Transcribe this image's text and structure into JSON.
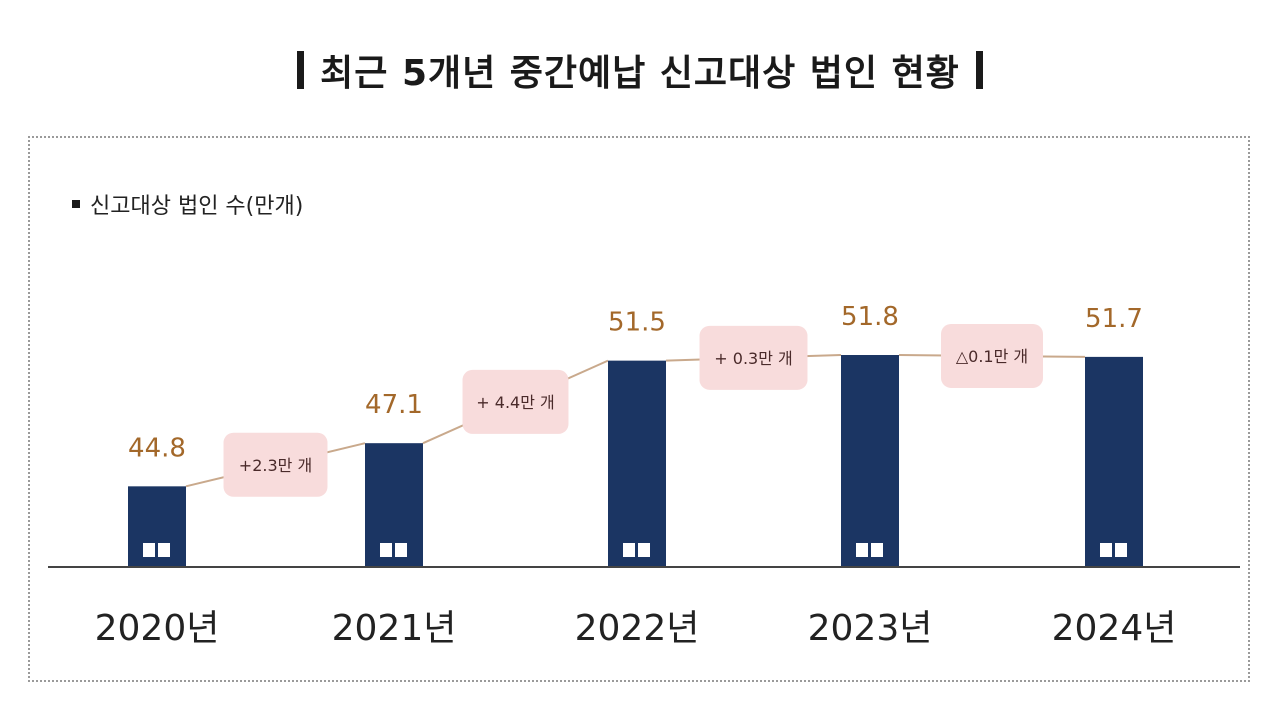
{
  "title": "최근 5개년 중간예납 신고대상 법인 현황",
  "legend": "신고대상 법인 수(만개)",
  "colors": {
    "bar": "#1b3563",
    "value_label": "#a3682a",
    "callout_fill": "#f8dcdc",
    "callout_text": "#4a2a2a",
    "connector": "#c9a98c",
    "axis": "#444444"
  },
  "chart_data": {
    "type": "bar",
    "categories": [
      "2020년",
      "2021년",
      "2022년",
      "2023년",
      "2024년"
    ],
    "values": [
      44.8,
      47.1,
      51.5,
      51.8,
      51.7
    ],
    "value_labels": [
      "44.8",
      "47.1",
      "51.5",
      "51.8",
      "51.7"
    ],
    "changes": [
      "+2.3만 개",
      "+ 4.4만 개",
      "+ 0.3만 개",
      "△0.1만 개"
    ],
    "ylim": [
      40.5,
      52.6
    ],
    "grid": false,
    "legend_position": "top-left"
  }
}
